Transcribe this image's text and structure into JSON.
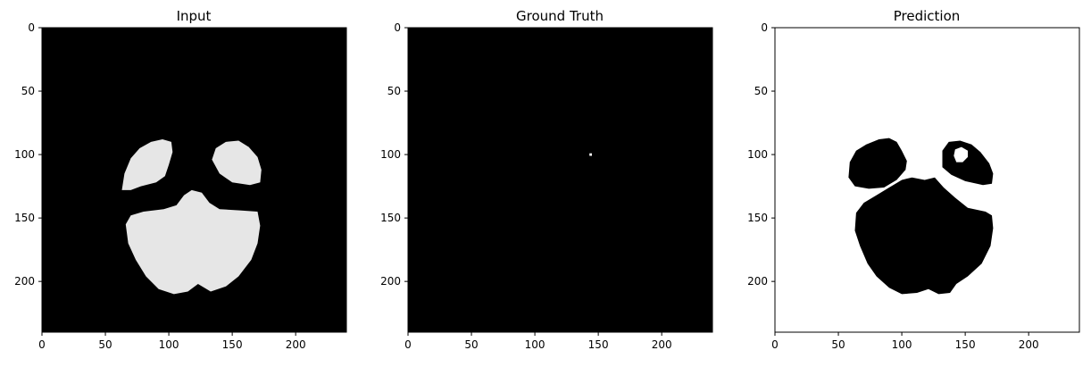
{
  "figure": {
    "panels": [
      {
        "title": "Input"
      },
      {
        "title": "Ground Truth"
      },
      {
        "title": "Prediction"
      }
    ]
  },
  "chart_data": [
    {
      "type": "heatmap",
      "title": "Input",
      "colormap": "gray",
      "image_size": [
        240,
        240
      ],
      "xlim": [
        0,
        240
      ],
      "ylim": [
        240,
        0
      ],
      "xticks": [
        0,
        50,
        100,
        150,
        200
      ],
      "yticks": [
        0,
        50,
        100,
        150,
        200
      ],
      "background_color": "#000000",
      "foreground_color": "#e6e6e6",
      "regions": [
        {
          "shape": "left-lobe",
          "points": [
            [
              63,
              128
            ],
            [
              65,
              115
            ],
            [
              70,
              103
            ],
            [
              77,
              95
            ],
            [
              86,
              90
            ],
            [
              95,
              88
            ],
            [
              102,
              90
            ],
            [
              103,
              98
            ],
            [
              100,
              108
            ],
            [
              97,
              117
            ],
            [
              90,
              122
            ],
            [
              78,
              125
            ],
            [
              70,
              128
            ]
          ]
        },
        {
          "shape": "right-lobe",
          "points": [
            [
              134,
              104
            ],
            [
              137,
              95
            ],
            [
              145,
              90
            ],
            [
              155,
              89
            ],
            [
              163,
              94
            ],
            [
              170,
              102
            ],
            [
              173,
              112
            ],
            [
              172,
              122
            ],
            [
              164,
              124
            ],
            [
              150,
              122
            ],
            [
              140,
              115
            ]
          ]
        },
        {
          "shape": "cerebellum",
          "points": [
            [
              66,
              155
            ],
            [
              70,
              148
            ],
            [
              80,
              145
            ],
            [
              96,
              143
            ],
            [
              106,
              140
            ],
            [
              112,
              132
            ],
            [
              118,
              128
            ],
            [
              126,
              130
            ],
            [
              132,
              138
            ],
            [
              140,
              143
            ],
            [
              156,
              144
            ],
            [
              170,
              145
            ],
            [
              172,
              156
            ],
            [
              170,
              170
            ],
            [
              165,
              183
            ],
            [
              155,
              196
            ],
            [
              145,
              204
            ],
            [
              133,
              208
            ],
            [
              123,
              202
            ],
            [
              115,
              208
            ],
            [
              104,
              210
            ],
            [
              92,
              206
            ],
            [
              82,
              196
            ],
            [
              74,
              183
            ],
            [
              68,
              170
            ]
          ]
        }
      ]
    },
    {
      "type": "heatmap",
      "title": "Ground Truth",
      "colormap": "gray",
      "image_size": [
        240,
        240
      ],
      "xlim": [
        0,
        240
      ],
      "ylim": [
        240,
        0
      ],
      "xticks": [
        0,
        50,
        100,
        150,
        200
      ],
      "yticks": [
        0,
        50,
        100,
        150,
        200
      ],
      "background_color": "#000000",
      "foreground_color": "#ffffff",
      "regions": [
        {
          "shape": "lesion",
          "points": [
            [
              143,
              99
            ],
            [
              145,
              99
            ],
            [
              145,
              101
            ],
            [
              143,
              101
            ]
          ]
        }
      ]
    },
    {
      "type": "heatmap",
      "title": "Prediction",
      "colormap": "gray",
      "image_size": [
        240,
        240
      ],
      "xlim": [
        0,
        240
      ],
      "ylim": [
        240,
        0
      ],
      "xticks": [
        0,
        50,
        100,
        150,
        200
      ],
      "yticks": [
        0,
        50,
        100,
        150,
        200
      ],
      "background_color": "#ffffff",
      "foreground_color": "#000000",
      "regions": [
        {
          "shape": "left-blob",
          "points": [
            [
              58,
              118
            ],
            [
              59,
              106
            ],
            [
              64,
              97
            ],
            [
              72,
              92
            ],
            [
              82,
              88
            ],
            [
              90,
              87
            ],
            [
              96,
              90
            ],
            [
              100,
              97
            ],
            [
              104,
              105
            ],
            [
              103,
              112
            ],
            [
              96,
              120
            ],
            [
              86,
              126
            ],
            [
              74,
              127
            ],
            [
              63,
              125
            ]
          ]
        },
        {
          "shape": "right-ring-outer",
          "points": [
            [
              132,
              110
            ],
            [
              132,
              97
            ],
            [
              137,
              90
            ],
            [
              146,
              89
            ],
            [
              155,
              92
            ],
            [
              162,
              98
            ],
            [
              169,
              107
            ],
            [
              172,
              115
            ],
            [
              171,
              123
            ],
            [
              164,
              124
            ],
            [
              150,
              121
            ],
            [
              139,
              116
            ]
          ]
        },
        {
          "shape": "right-ring-hole",
          "points": [
            [
              141,
              101
            ],
            [
              142,
              96
            ],
            [
              147,
              94
            ],
            [
              152,
              97
            ],
            [
              152,
              102
            ],
            [
              148,
              106
            ],
            [
              143,
              106
            ]
          ],
          "fill": "background"
        },
        {
          "shape": "main-blob",
          "points": [
            [
              64,
              146
            ],
            [
              70,
              138
            ],
            [
              80,
              132
            ],
            [
              90,
              126
            ],
            [
              100,
              120
            ],
            [
              108,
              118
            ],
            [
              118,
              120
            ],
            [
              126,
              118
            ],
            [
              133,
              126
            ],
            [
              142,
              134
            ],
            [
              152,
              142
            ],
            [
              166,
              145
            ],
            [
              171,
              148
            ],
            [
              172,
              158
            ],
            [
              170,
              172
            ],
            [
              163,
              186
            ],
            [
              152,
              196
            ],
            [
              143,
              202
            ],
            [
              138,
              209
            ],
            [
              129,
              210
            ],
            [
              121,
              206
            ],
            [
              112,
              209
            ],
            [
              100,
              210
            ],
            [
              90,
              205
            ],
            [
              80,
              196
            ],
            [
              73,
              186
            ],
            [
              67,
              172
            ],
            [
              63,
              160
            ]
          ]
        }
      ]
    }
  ]
}
